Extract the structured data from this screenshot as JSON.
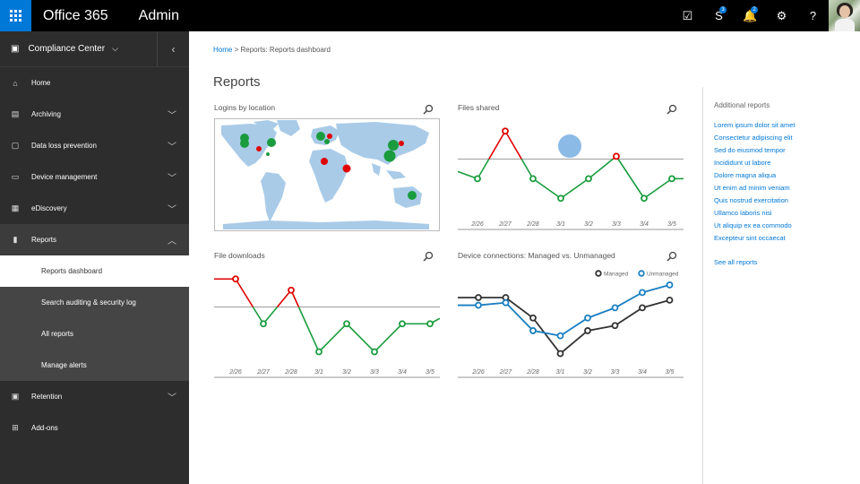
{
  "topbar": {
    "brand": "Office 365",
    "app": "Admin",
    "icons": [
      {
        "name": "tasks-icon",
        "glyph": "☑",
        "badge": ""
      },
      {
        "name": "skype-icon",
        "glyph": "S",
        "badge": "3"
      },
      {
        "name": "bell-icon",
        "glyph": "🔔",
        "badge": "2"
      },
      {
        "name": "gear-icon",
        "glyph": "⚙",
        "badge": ""
      },
      {
        "name": "help-icon",
        "glyph": "?",
        "badge": ""
      }
    ]
  },
  "sidebar": {
    "header": "Compliance Center",
    "items": [
      {
        "label": "Home",
        "icon": "home-icon",
        "glyph": "⌂",
        "chevron": false
      },
      {
        "label": "Archiving",
        "icon": "archive-icon",
        "glyph": "▤",
        "chevron": true
      },
      {
        "label": "Data loss prevention",
        "icon": "dlp-icon",
        "glyph": "▢",
        "chevron": true
      },
      {
        "label": "Device management",
        "icon": "device-icon",
        "glyph": "▭",
        "chevron": true
      },
      {
        "label": "eDiscovery",
        "icon": "ediscovery-icon",
        "glyph": "▦",
        "chevron": true
      },
      {
        "label": "Reports",
        "icon": "reports-icon",
        "glyph": "▮",
        "chevron": true,
        "expanded": true
      }
    ],
    "subitems": [
      {
        "label": "Reports dashboard",
        "active": true
      },
      {
        "label": "Search auditing & security log",
        "active": false
      },
      {
        "label": "All reports",
        "active": false
      },
      {
        "label": "Manage alerts",
        "active": false
      }
    ],
    "items_after": [
      {
        "label": "Retention",
        "icon": "retention-icon",
        "glyph": "▣",
        "chevron": true
      },
      {
        "label": "Add-ons",
        "icon": "addons-icon",
        "glyph": "⊞",
        "chevron": false
      }
    ]
  },
  "breadcrumb": {
    "home": "Home",
    "separator": " > ",
    "current": "Reports: Reports dashboard"
  },
  "page_title": "Reports",
  "cards": {
    "logins": {
      "title": "Logins by location"
    },
    "files_shared": {
      "title": "Files shared"
    },
    "file_downloads": {
      "title": "File downloads"
    },
    "device_connections": {
      "title": "Device connections: Managed vs. Unmanaged"
    }
  },
  "additional_reports": {
    "title": "Additional reports",
    "links": [
      "Lorem ipsum dolor sit amet",
      "Consectetur adipiscing elit",
      "Sed do eiusmod tempor",
      "Incididunt ut labore",
      "Dolore magna aliqua",
      "Ut enim ad minim veniam",
      "Quis nostrud exercitation",
      "Ullamco laboris nisi",
      "Ut aliquip ex ea commodo",
      "Excepteur sint occaecat"
    ],
    "see_all": "See all reports"
  },
  "chart_data": [
    {
      "type": "line",
      "name": "Files shared",
      "categories": [
        "2/26",
        "2/27",
        "2/28",
        "3/1",
        "3/2",
        "3/3",
        "3/4",
        "3/5"
      ],
      "values": [
        0.15,
        1.0,
        0.15,
        -0.2,
        0.15,
        0.55,
        -0.2,
        0.15
      ],
      "threshold": 0.5,
      "colors": {
        "above": "#e00000",
        "below": "#1a9c3e"
      }
    },
    {
      "type": "line",
      "name": "File downloads",
      "categories": [
        "2/26",
        "2/27",
        "2/28",
        "3/1",
        "3/2",
        "3/3",
        "3/4",
        "3/5"
      ],
      "values": [
        1.0,
        0.2,
        0.8,
        -0.3,
        0.2,
        -0.3,
        0.2,
        0.2
      ],
      "threshold": 0.5,
      "colors": {
        "above": "#e00000",
        "below": "#1a9c3e"
      }
    },
    {
      "type": "line",
      "name": "Device connections: Managed vs. Unmanaged",
      "categories": [
        "2/26",
        "2/27",
        "2/28",
        "3/1",
        "3/2",
        "3/3",
        "3/4",
        "3/5"
      ],
      "series": [
        {
          "name": "Managed",
          "color": "#333333",
          "values": [
            0.85,
            0.85,
            0.45,
            -0.25,
            0.2,
            0.3,
            0.65,
            0.8
          ]
        },
        {
          "name": "Unmanaged",
          "color": "#1a7fc1",
          "values": [
            0.7,
            0.75,
            0.2,
            0.1,
            0.45,
            0.65,
            0.95,
            1.1
          ]
        }
      ],
      "legend": "top-right"
    }
  ],
  "map_markers": [
    {
      "color": "#1a9c3e",
      "size": "large"
    },
    {
      "color": "#e00000",
      "size": "medium"
    }
  ]
}
